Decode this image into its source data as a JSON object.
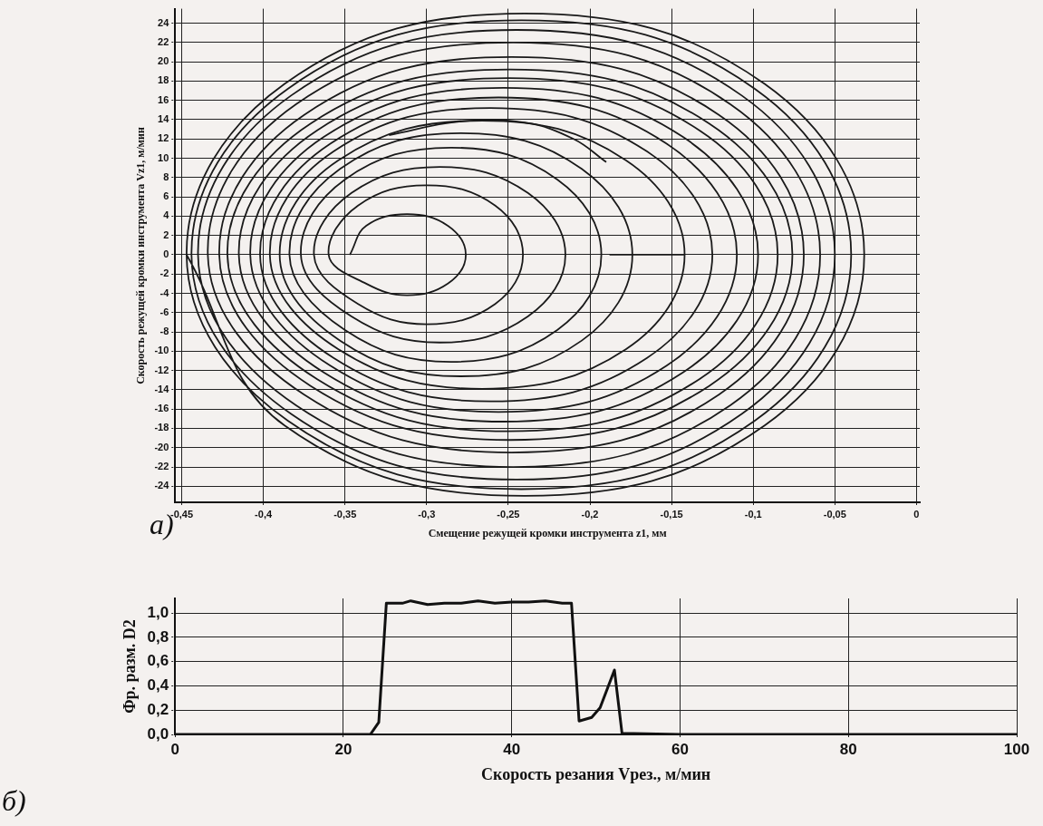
{
  "chart_data": [
    {
      "type": "line",
      "xlabel": "Смещение режущей кромки инструмента z1, мм",
      "ylabel": "Скорость режущей кромки инструмента Vz1, м/мин",
      "annotations": [
        "а)"
      ],
      "xlim": [
        -0.454,
        0.002
      ],
      "ylim": [
        -25.7,
        25.5
      ],
      "xticks": [
        {
          "value": -0.45,
          "label": "-0,45"
        },
        {
          "value": -0.4,
          "label": "-0,4"
        },
        {
          "value": -0.35,
          "label": "-0,35"
        },
        {
          "value": -0.3,
          "label": "-0,3"
        },
        {
          "value": -0.25,
          "label": "-0,25"
        },
        {
          "value": -0.2,
          "label": "-0,2"
        },
        {
          "value": -0.15,
          "label": "-0,15"
        },
        {
          "value": -0.1,
          "label": "-0,1"
        },
        {
          "value": -0.05,
          "label": "-0,05"
        },
        0
      ],
      "yticks": [
        -24,
        -22,
        -20,
        -18,
        -16,
        -14,
        -12,
        -10,
        -8,
        -6,
        -4,
        -2,
        0,
        2,
        4,
        6,
        8,
        10,
        12,
        14,
        16,
        18,
        20,
        22,
        24
      ],
      "grid": true,
      "marker": "none",
      "line_style": "solid",
      "series": [
        {
          "color": "#1a1a1a",
          "x": [
            -0.347,
            -0.337,
            -0.312,
            -0.287,
            -0.276,
            -0.287,
            -0.312,
            -0.337,
            -0.36,
            -0.342,
            -0.3,
            -0.258,
            -0.241,
            -0.258,
            -0.3,
            -0.342,
            -0.369,
            -0.346,
            -0.292,
            -0.238,
            -0.215,
            -0.238,
            -0.292,
            -0.346,
            -0.377,
            -0.35,
            -0.285,
            -0.22,
            -0.193,
            -0.22,
            -0.285,
            -0.35,
            -0.384,
            -0.353,
            -0.279,
            -0.205,
            -0.174,
            -0.205,
            -0.279,
            -0.353,
            -0.39,
            -0.354,
            -0.266,
            -0.178,
            -0.142,
            -0.178,
            -0.266,
            -0.354,
            -0.396,
            -0.357,
            -0.261,
            -0.165,
            -0.125,
            -0.165,
            -0.261,
            -0.357,
            -0.402,
            -0.359,
            -0.256,
            -0.153,
            -0.11,
            -0.153,
            -0.256,
            -0.359,
            -0.408,
            -0.363,
            -0.253,
            -0.143,
            -0.097,
            -0.143,
            -0.253,
            -0.363,
            -0.415,
            -0.367,
            -0.25,
            -0.133,
            -0.085,
            -0.133,
            -0.25,
            -0.367,
            -0.422,
            -0.371,
            -0.249,
            -0.127,
            -0.076,
            -0.127,
            -0.249,
            -0.371,
            -0.427,
            -0.375,
            -0.248,
            -0.121,
            -0.069,
            -0.121,
            -0.248,
            -0.375,
            -0.434,
            -0.38,
            -0.247,
            -0.114,
            -0.059,
            -0.114,
            -0.247,
            -0.38,
            -0.44,
            -0.383,
            -0.245,
            -0.107,
            -0.05,
            -0.107,
            -0.245,
            -0.383,
            -0.444,
            -0.385,
            -0.242,
            -0.099,
            -0.04,
            -0.099,
            -0.242,
            -0.385,
            -0.447,
            -0.387,
            -0.24,
            -0.093,
            -0.032,
            -0.093,
            -0.24,
            -0.387,
            -0.447
          ],
          "values": [
            0,
            3.0,
            4.2,
            3.0,
            0,
            -3.0,
            -4.2,
            -3.0,
            0,
            5.1,
            7.2,
            5.1,
            0,
            -5.1,
            -7.2,
            -5.1,
            0,
            6.4,
            9.1,
            6.4,
            0,
            -6.4,
            -9.1,
            -6.4,
            0,
            7.8,
            11.1,
            7.8,
            0,
            -7.8,
            -11.1,
            -7.8,
            0,
            8.9,
            12.6,
            8.9,
            0,
            -8.9,
            -12.6,
            -8.9,
            0,
            9.8,
            13.9,
            9.8,
            0,
            -9.8,
            -13.9,
            -9.8,
            0,
            10.7,
            15.2,
            10.7,
            0,
            -10.7,
            -15.2,
            -10.7,
            0,
            11.5,
            16.3,
            11.5,
            0,
            -11.5,
            -16.3,
            -11.5,
            0,
            12.2,
            17.3,
            12.2,
            0,
            -12.2,
            -17.3,
            -12.2,
            0,
            12.9,
            18.3,
            12.9,
            0,
            -12.9,
            -18.3,
            -12.9,
            0,
            13.6,
            19.2,
            13.6,
            0,
            -13.6,
            -19.2,
            -13.6,
            0,
            14.5,
            20.5,
            14.5,
            0,
            -14.5,
            -20.5,
            -14.5,
            0,
            15.6,
            22.0,
            15.6,
            0,
            -15.6,
            -22.0,
            -15.6,
            0,
            16.5,
            23.3,
            16.5,
            0,
            -16.5,
            -23.3,
            -16.5,
            0,
            17.2,
            24.3,
            17.2,
            0,
            -17.2,
            -24.3,
            -17.2,
            0,
            17.7,
            25.0,
            17.7,
            0,
            -17.7,
            -25.0,
            -17.7,
            0
          ]
        },
        {
          "color": "#1a1a1a",
          "x": [
            -0.188,
            -0.142
          ],
          "values": [
            0,
            0
          ]
        },
        {
          "color": "#1a1a1a",
          "x": [
            -0.323,
            -0.28,
            -0.24,
            -0.21,
            -0.19
          ],
          "values": [
            12.4,
            13.8,
            13.7,
            12.0,
            9.6
          ]
        }
      ]
    },
    {
      "type": "line",
      "xlabel": "Скорость резания Vрез., м/мин",
      "ylabel": "Фр. разм. D2",
      "annotations": [
        "б)"
      ],
      "xlim": [
        0,
        100
      ],
      "ylim": [
        0,
        1.12
      ],
      "xticks": [
        0,
        20,
        40,
        60,
        80,
        100
      ],
      "yticks": [
        {
          "value": 0,
          "label": "0,0"
        },
        {
          "value": 0.2,
          "label": "0,2"
        },
        {
          "value": 0.4,
          "label": "0,4"
        },
        {
          "value": 0.6,
          "label": "0,6"
        },
        {
          "value": 0.8,
          "label": "0,8"
        },
        {
          "value": 1.0,
          "label": "1,0"
        }
      ],
      "grid": true,
      "marker": "none",
      "line_style": "solid",
      "series": [
        {
          "color": "#111111",
          "x": [
            0,
            23.2,
            24.2,
            25.1,
            27,
            28,
            30,
            32,
            34,
            36,
            38,
            40,
            42,
            44,
            46,
            47.1,
            48.0,
            49.5,
            50.5,
            52.2,
            53.1,
            60,
            80,
            100
          ],
          "values": [
            0,
            0,
            0.1,
            1.08,
            1.08,
            1.1,
            1.07,
            1.08,
            1.08,
            1.1,
            1.08,
            1.09,
            1.09,
            1.1,
            1.08,
            1.08,
            0.11,
            0.14,
            0.22,
            0.53,
            0.01,
            0,
            0,
            0
          ]
        }
      ]
    }
  ]
}
